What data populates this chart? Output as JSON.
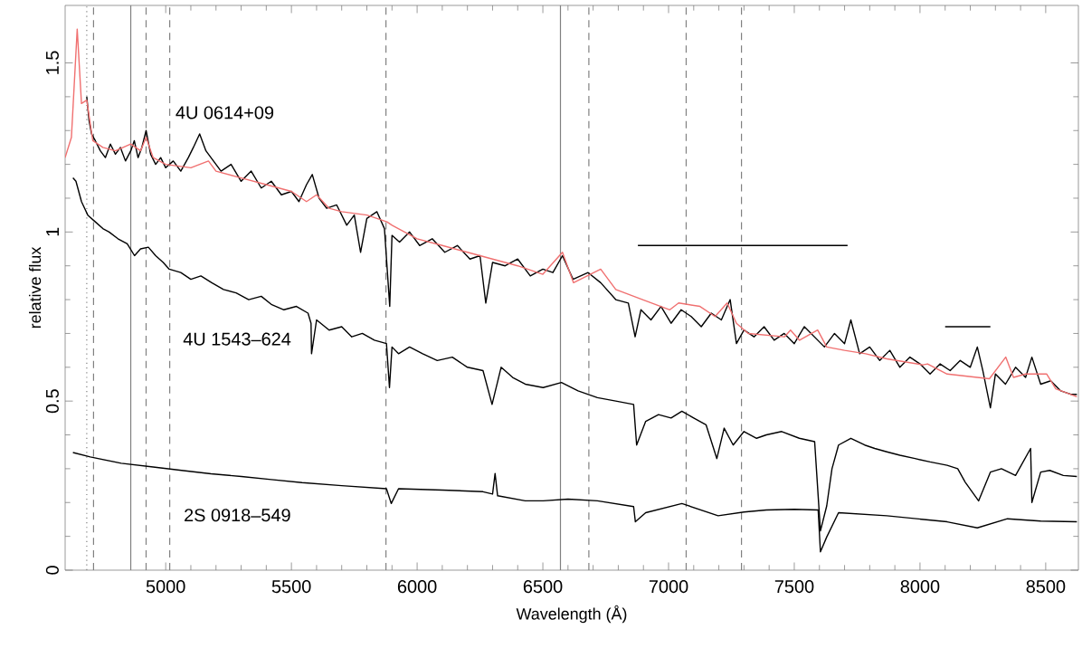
{
  "chart_data": {
    "type": "line",
    "xlabel": "Wavelength (Å)",
    "ylabel": "relative flux",
    "xlim": [
      4600,
      8630
    ],
    "ylim": [
      0,
      1.67
    ],
    "xticks": [
      5000,
      5500,
      6000,
      6500,
      7000,
      7500,
      8000,
      8500
    ],
    "yticks": [
      0,
      0.5,
      1,
      1.5
    ],
    "grid": false,
    "marker": "none",
    "line_style": "solid",
    "ref_lines": [
      {
        "axis": "x",
        "value": 4686,
        "color": "#808080",
        "line_style": "dotted"
      },
      {
        "axis": "x",
        "value": 4713,
        "color": "#808080",
        "line_style": "dashed"
      },
      {
        "axis": "x",
        "value": 4861,
        "color": "#808080",
        "line_style": "solid"
      },
      {
        "axis": "x",
        "value": 4922,
        "color": "#808080",
        "line_style": "dashed"
      },
      {
        "axis": "x",
        "value": 5016,
        "color": "#808080",
        "line_style": "dashed"
      },
      {
        "axis": "x",
        "value": 5876,
        "color": "#808080",
        "line_style": "dashed"
      },
      {
        "axis": "x",
        "value": 6570,
        "color": "#808080",
        "line_style": "solid"
      },
      {
        "axis": "x",
        "value": 6683,
        "color": "#808080",
        "line_style": "dashed"
      },
      {
        "axis": "x",
        "value": 7070,
        "color": "#808080",
        "line_style": "dashed"
      },
      {
        "axis": "x",
        "value": 7290,
        "color": "#808080",
        "line_style": "dashed"
      }
    ],
    "series": [
      {
        "name": "4U 0614+09",
        "color": "#000000",
        "x": [
          4686,
          4695,
          4705,
          4720,
          4740,
          4760,
          4780,
          4800,
          4820,
          4840,
          4861,
          4875,
          4890,
          4905,
          4922,
          4940,
          4960,
          4980,
          5000,
          5030,
          5060,
          5090,
          5110,
          5135,
          5160,
          5190,
          5220,
          5260,
          5300,
          5340,
          5380,
          5420,
          5460,
          5500,
          5530,
          5560,
          5583,
          5610,
          5640,
          5680,
          5720,
          5750,
          5775,
          5800,
          5840,
          5870,
          5891,
          5900,
          5930,
          5970,
          6010,
          6060,
          6110,
          6160,
          6210,
          6250,
          6273,
          6300,
          6350,
          6400,
          6450,
          6500,
          6540,
          6578,
          6620,
          6680,
          6730,
          6790,
          6840,
          6867,
          6890,
          6930,
          6970,
          7010,
          7050,
          7090,
          7130,
          7170,
          7210,
          7245,
          7270,
          7300,
          7340,
          7380,
          7420,
          7460,
          7500,
          7540,
          7580,
          7620,
          7660,
          7700,
          7725,
          7760,
          7800,
          7840,
          7880,
          7920,
          7960,
          8000,
          8040,
          8080,
          8120,
          8160,
          8200,
          8228,
          8250,
          8280,
          8300,
          8340,
          8380,
          8420,
          8445,
          8480,
          8520,
          8560,
          8600,
          8624
        ],
        "values": [
          1.4,
          1.33,
          1.29,
          1.27,
          1.24,
          1.22,
          1.26,
          1.23,
          1.25,
          1.21,
          1.24,
          1.27,
          1.22,
          1.25,
          1.3,
          1.23,
          1.2,
          1.22,
          1.19,
          1.21,
          1.18,
          1.22,
          1.25,
          1.29,
          1.24,
          1.21,
          1.18,
          1.2,
          1.15,
          1.18,
          1.13,
          1.15,
          1.11,
          1.12,
          1.09,
          1.14,
          1.17,
          1.1,
          1.07,
          1.08,
          1.02,
          1.05,
          0.94,
          1.04,
          1.06,
          1.01,
          0.78,
          0.99,
          0.97,
          1.0,
          0.96,
          0.98,
          0.94,
          0.96,
          0.92,
          0.93,
          0.79,
          0.91,
          0.9,
          0.92,
          0.87,
          0.89,
          0.88,
          0.93,
          0.86,
          0.88,
          0.85,
          0.8,
          0.79,
          0.69,
          0.77,
          0.74,
          0.78,
          0.73,
          0.77,
          0.75,
          0.72,
          0.76,
          0.74,
          0.8,
          0.67,
          0.71,
          0.69,
          0.72,
          0.68,
          0.7,
          0.67,
          0.72,
          0.69,
          0.66,
          0.7,
          0.67,
          0.74,
          0.64,
          0.66,
          0.62,
          0.65,
          0.6,
          0.63,
          0.61,
          0.58,
          0.61,
          0.59,
          0.62,
          0.6,
          0.66,
          0.59,
          0.48,
          0.58,
          0.55,
          0.6,
          0.57,
          0.63,
          0.55,
          0.56,
          0.53,
          0.52,
          0.52
        ]
      },
      {
        "color": "#f07070",
        "x": [
          4600,
          4625,
          4648,
          4665,
          4686,
          4710,
          4750,
          4800,
          4861,
          4900,
          4922,
          4950,
          5000,
          5100,
          5170,
          5200,
          5300,
          5400,
          5500,
          5560,
          5600,
          5650,
          5700,
          5800,
          5880,
          5900,
          6000,
          6100,
          6200,
          6300,
          6400,
          6500,
          6578,
          6622,
          6730,
          6790,
          6897,
          7005,
          7040,
          7125,
          7185,
          7233,
          7270,
          7317,
          7461,
          7485,
          7521,
          7593,
          7629,
          7700,
          7784,
          7868,
          8012,
          8030,
          8108,
          8276,
          8341,
          8372,
          8420,
          8504,
          8540,
          8624
        ],
        "values": [
          1.22,
          1.28,
          1.6,
          1.38,
          1.39,
          1.27,
          1.25,
          1.24,
          1.26,
          1.24,
          1.28,
          1.22,
          1.2,
          1.19,
          1.21,
          1.18,
          1.16,
          1.14,
          1.12,
          1.09,
          1.11,
          1.07,
          1.06,
          1.05,
          1.03,
          1.02,
          0.98,
          0.96,
          0.94,
          0.92,
          0.9,
          0.875,
          0.94,
          0.85,
          0.89,
          0.83,
          0.8,
          0.77,
          0.79,
          0.78,
          0.75,
          0.79,
          0.73,
          0.7,
          0.69,
          0.71,
          0.68,
          0.71,
          0.66,
          0.65,
          0.64,
          0.625,
          0.607,
          0.61,
          0.58,
          0.566,
          0.63,
          0.57,
          0.58,
          0.58,
          0.536,
          0.513
        ]
      },
      {
        "name": "4U 1543–624",
        "color": "#000000",
        "x": [
          4631,
          4643,
          4665,
          4690,
          4720,
          4750,
          4775,
          4810,
          4847,
          4876,
          4900,
          4931,
          4960,
          4990,
          5014,
          5060,
          5100,
          5140,
          5183,
          5230,
          5280,
          5330,
          5380,
          5422,
          5470,
          5520,
          5566,
          5578,
          5580,
          5600,
          5650,
          5700,
          5740,
          5782,
          5830,
          5878,
          5890,
          5900,
          5926,
          5970,
          6022,
          6080,
          6140,
          6200,
          6262,
          6298,
          6334,
          6380,
          6430,
          6501,
          6574,
          6640,
          6717,
          6790,
          6861,
          6873,
          6909,
          6960,
          7010,
          7053,
          7100,
          7149,
          7192,
          7221,
          7257,
          7300,
          7350,
          7389,
          7450,
          7520,
          7581,
          7604,
          7629,
          7650,
          7676,
          7725,
          7780,
          7820,
          7868,
          7920,
          7980,
          8040,
          8108,
          8150,
          8180,
          8233,
          8280,
          8324,
          8380,
          8440,
          8445,
          8480,
          8516,
          8570,
          8624
        ],
        "values": [
          1.16,
          1.15,
          1.09,
          1.05,
          1.03,
          1.01,
          1.0,
          0.98,
          0.965,
          0.93,
          0.95,
          0.955,
          0.93,
          0.91,
          0.89,
          0.88,
          0.86,
          0.87,
          0.85,
          0.83,
          0.82,
          0.8,
          0.81,
          0.785,
          0.77,
          0.78,
          0.76,
          0.73,
          0.64,
          0.74,
          0.71,
          0.72,
          0.69,
          0.7,
          0.68,
          0.67,
          0.54,
          0.66,
          0.64,
          0.66,
          0.64,
          0.62,
          0.63,
          0.6,
          0.59,
          0.49,
          0.6,
          0.57,
          0.55,
          0.54,
          0.555,
          0.53,
          0.51,
          0.5,
          0.49,
          0.37,
          0.44,
          0.46,
          0.45,
          0.47,
          0.45,
          0.43,
          0.33,
          0.42,
          0.37,
          0.41,
          0.39,
          0.4,
          0.41,
          0.39,
          0.38,
          0.116,
          0.19,
          0.3,
          0.37,
          0.39,
          0.37,
          0.36,
          0.35,
          0.34,
          0.33,
          0.32,
          0.31,
          0.3,
          0.26,
          0.205,
          0.29,
          0.3,
          0.28,
          0.36,
          0.2,
          0.29,
          0.295,
          0.28,
          0.277
        ]
      },
      {
        "name": "2S 0918–549",
        "color": "#000000",
        "x": [
          4631,
          4700,
          4823,
          4950,
          5063,
          5180,
          5301,
          5420,
          5542,
          5700,
          5878,
          5897,
          5926,
          6100,
          6262,
          6300,
          6310,
          6320,
          6430,
          6501,
          6600,
          6717,
          6861,
          6868,
          6909,
          7053,
          7197,
          7300,
          7389,
          7500,
          7595,
          7604,
          7629,
          7676,
          7868,
          8108,
          8228,
          8348,
          8480,
          8624
        ],
        "values": [
          0.348,
          0.335,
          0.316,
          0.305,
          0.295,
          0.285,
          0.277,
          0.268,
          0.259,
          0.25,
          0.241,
          0.197,
          0.241,
          0.237,
          0.232,
          0.225,
          0.286,
          0.22,
          0.205,
          0.205,
          0.21,
          0.205,
          0.188,
          0.143,
          0.17,
          0.197,
          0.161,
          0.172,
          0.178,
          0.18,
          0.178,
          0.054,
          0.098,
          0.17,
          0.161,
          0.143,
          0.125,
          0.152,
          0.145,
          0.143
        ]
      },
      {
        "color": "#000000",
        "x": [
          6878,
          7712
        ],
        "values": [
          0.96,
          0.96
        ]
      },
      {
        "color": "#000000",
        "x": [
          8100,
          8280
        ],
        "values": [
          0.72,
          0.72
        ]
      }
    ]
  }
}
